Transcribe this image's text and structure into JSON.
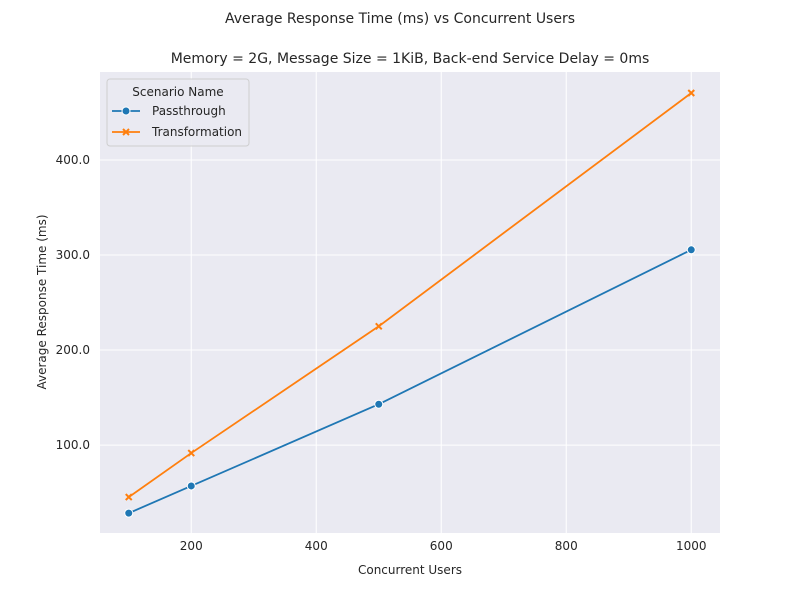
{
  "chart_data": {
    "type": "line",
    "suptitle": "Average Response Time (ms) vs Concurrent Users",
    "title": "Memory = 2G, Message Size = 1KiB, Back-end Service Delay = 0ms",
    "xlabel": "Concurrent Users",
    "ylabel": "Average Response Time (ms)",
    "xlim": [
      54,
      1046
    ],
    "ylim": [
      7.5,
      521
    ],
    "xticks": [
      200,
      400,
      600,
      800,
      1000
    ],
    "xtick_labels": [
      "200",
      "400",
      "600",
      "800",
      "1000"
    ],
    "yticks": [
      100,
      200,
      300,
      400
    ],
    "ytick_labels": [
      "100.0",
      "200.0",
      "300.0",
      "400.0"
    ],
    "grid": true,
    "legend": {
      "title": "Scenario Name",
      "placement": "top-left"
    },
    "x": [
      100,
      200,
      500,
      1000
    ],
    "series": [
      {
        "name": "Passthrough",
        "color": "#1f77b4",
        "marker": "circle",
        "values": [
          28.4,
          57.0,
          143.0,
          305.5
        ]
      },
      {
        "name": "Transformation",
        "color": "#ff7f0e",
        "marker": "x",
        "values": [
          45.3,
          91.6,
          225.0,
          470.5
        ]
      }
    ]
  }
}
